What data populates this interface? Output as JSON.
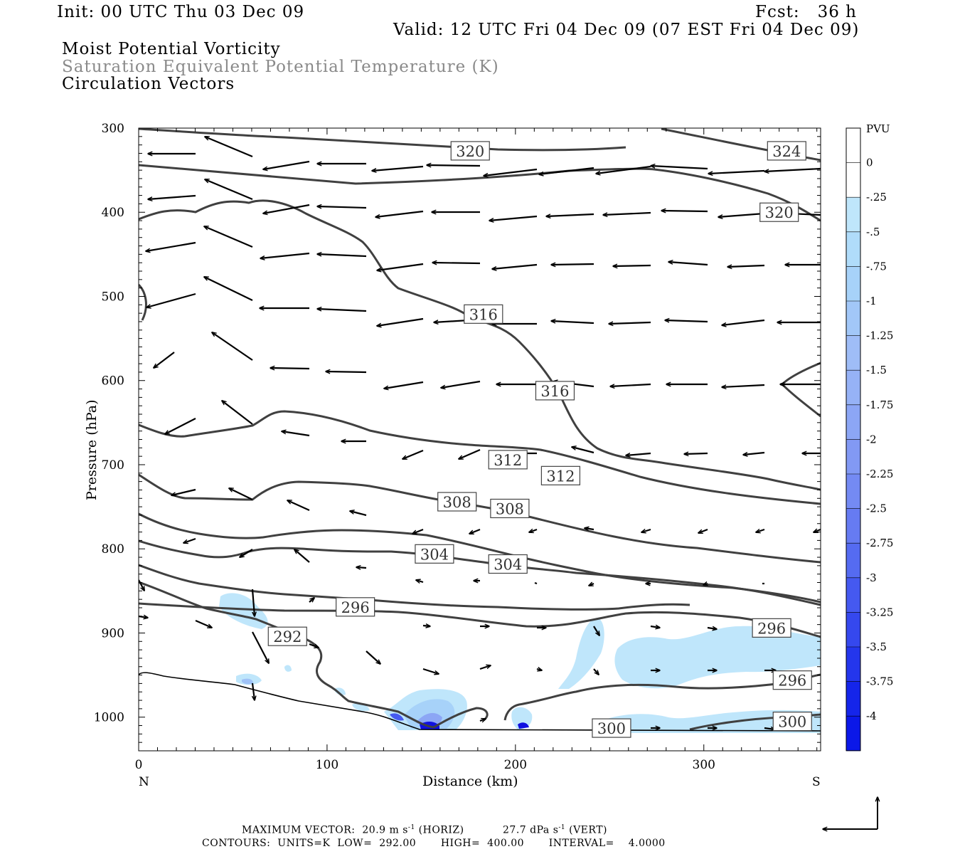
{
  "header": {
    "init": "Init: 00 UTC Thu 03 Dec 09",
    "fcst": "Fcst:   36 h",
    "valid": "Valid: 12 UTC Fri 04 Dec 09 (07 EST Fri 04 Dec 09)",
    "field1": "Moist Potential Vorticity",
    "field2": "Saturation Equivalent Potential Temperature (K)",
    "field3": "Circulation Vectors"
  },
  "footer": {
    "max_vector": "MAXIMUM VECTOR:  20.9 m s",
    "max_vector_exp": "-1",
    "horiz": " (HORIZ)",
    "vert_val": "27.7 dPa s",
    "vert_exp": "-1",
    "vert": " (VERT)",
    "contours": "CONTOURS:  UNITS=K  LOW=  292.00       HIGH=  400.00       INTERVAL=    4.0000"
  },
  "colors": {
    "contour": "#404040",
    "shade_light": "#bfe6fb",
    "shade_mid": "#9fc2f7",
    "shade_dark": "#1010e0"
  },
  "chart_data": {
    "type": "cross-section",
    "xlabel": "Distance (km)",
    "ylabel": "Pressure (hPa)",
    "xlim": [
      0,
      362
    ],
    "ylim": [
      1040,
      300
    ],
    "x_ticks": [
      "0",
      "100",
      "200",
      "300"
    ],
    "y_ticks": [
      "300",
      "400",
      "500",
      "600",
      "700",
      "800",
      "900",
      "1000"
    ],
    "x_end_labels": {
      "left": "N",
      "right": "S"
    },
    "colorbar": {
      "units": "PVU",
      "labels": [
        "0",
        "-.25",
        "-.5",
        "-.75",
        "-1",
        "-1.25",
        "-1.5",
        "-1.75",
        "-2",
        "-2.25",
        "-2.5",
        "-2.75",
        "-3",
        "-3.25",
        "-3.5",
        "-3.75",
        "-4"
      ],
      "colors": [
        "#ffffff",
        "#ffffff",
        "#bfe6fb",
        "#b0dcfa",
        "#a7d2f9",
        "#a2c7f8",
        "#9fbdf7",
        "#96b2f6",
        "#8ca6f5",
        "#8299f4",
        "#748af3",
        "#667bf2",
        "#556bf1",
        "#4559f0",
        "#3548ee",
        "#2436ec",
        "#1525ea",
        "#0b18e8"
      ]
    },
    "contour_labels": [
      {
        "text": "320",
        "x": 176,
        "p": 327
      },
      {
        "text": "324",
        "x": 344,
        "p": 327
      },
      {
        "text": "320",
        "x": 340,
        "p": 400
      },
      {
        "text": "316",
        "x": 183,
        "p": 521
      },
      {
        "text": "316",
        "x": 221,
        "p": 612
      },
      {
        "text": "312",
        "x": 196,
        "p": 694
      },
      {
        "text": "312",
        "x": 224,
        "p": 713
      },
      {
        "text": "308",
        "x": 169,
        "p": 744
      },
      {
        "text": "308",
        "x": 197,
        "p": 752
      },
      {
        "text": "304",
        "x": 157,
        "p": 806
      },
      {
        "text": "304",
        "x": 196,
        "p": 818
      },
      {
        "text": "296",
        "x": 115,
        "p": 869
      },
      {
        "text": "292",
        "x": 79,
        "p": 904
      },
      {
        "text": "296",
        "x": 336,
        "p": 894
      },
      {
        "text": "296",
        "x": 347,
        "p": 956
      },
      {
        "text": "300",
        "x": 251,
        "p": 1013
      },
      {
        "text": "300",
        "x": 347,
        "p": 1005
      }
    ]
  }
}
